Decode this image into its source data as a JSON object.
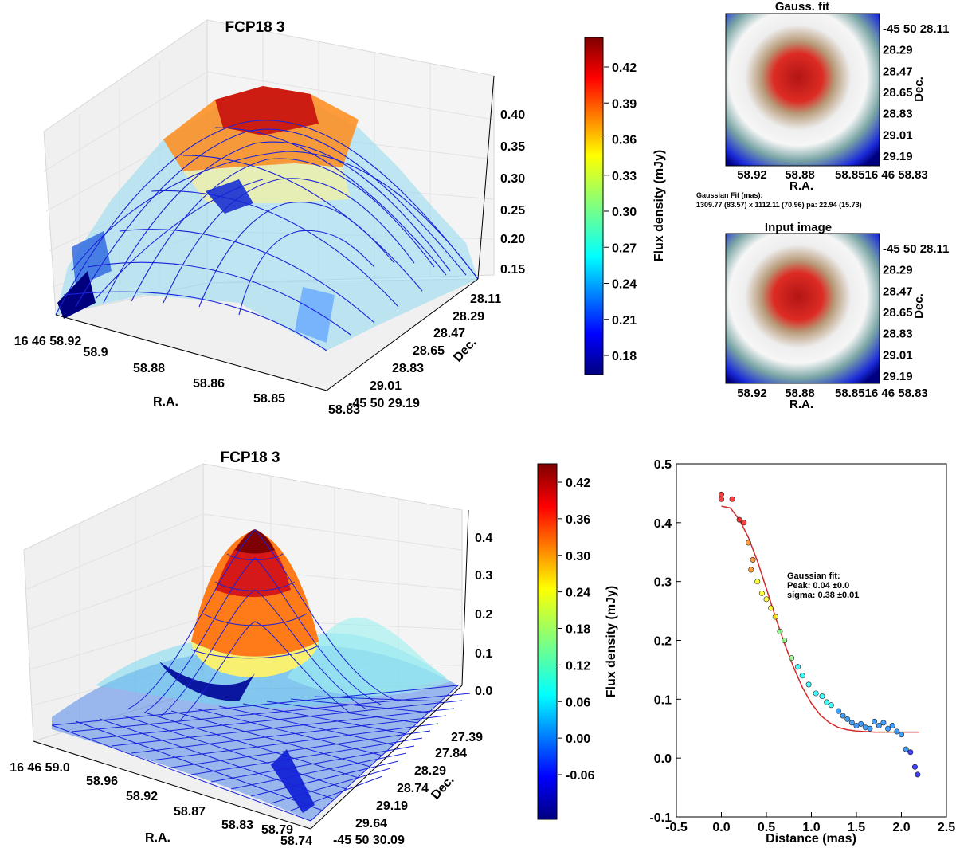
{
  "colors": {
    "jet": [
      "#00007f",
      "#0000ff",
      "#007fff",
      "#00ffff",
      "#7fff7f",
      "#ffff00",
      "#ff7f00",
      "#ff0000",
      "#7f0000"
    ],
    "fit_line": "#d62728",
    "wire": "#1a22d8"
  },
  "surface_top": {
    "title": "FCP18 3",
    "xlabel": "R.A.",
    "ylabel": "Dec.",
    "ra_ticks": [
      "16 46 58.92",
      "58.9",
      "58.88",
      "58.86",
      "58.85",
      "58.83"
    ],
    "dec_ticks": [
      "28.11",
      "28.29",
      "28.47",
      "28.65",
      "28.83",
      "29.01",
      "-45 50 29.19"
    ],
    "z_ticks": [
      "0.40",
      "0.35",
      "0.30",
      "0.25",
      "0.20",
      "0.15"
    ],
    "colorbar_label": "Flux density (mJy)",
    "colorbar_ticks": [
      "0.42",
      "0.39",
      "0.36",
      "0.33",
      "0.30",
      "0.27",
      "0.24",
      "0.21",
      "0.18"
    ]
  },
  "gauss_panel": {
    "title": "Gauss. fit",
    "xlabel": "R.A.",
    "ylabel": "Dec.",
    "x_ticks": [
      "58.92",
      "58.88",
      "58.8516 46 58.83"
    ],
    "y_ticks": [
      "-45 50 28.11",
      "28.29",
      "28.47",
      "28.65",
      "28.83",
      "29.01",
      "29.19"
    ],
    "fit_caption": "Gaussian Fit (mas):",
    "fit_values": "1309.77 (83.57) x 1112.11 (70.96) pa: 22.94 (15.73)"
  },
  "input_panel": {
    "title": "Input image",
    "xlabel": "R.A.",
    "ylabel": "Dec.",
    "x_ticks": [
      "58.92",
      "58.88",
      "58.8516 46 58.83"
    ],
    "y_ticks": [
      "-45 50 28.11",
      "28.29",
      "28.47",
      "28.65",
      "28.83",
      "29.01",
      "29.19"
    ]
  },
  "surface_bottom": {
    "title": "FCP18 3",
    "xlabel": "R.A.",
    "ylabel": "Dec.",
    "ra_ticks": [
      "16 46 59.0",
      "58.96",
      "58.92",
      "58.87",
      "58.83",
      "58.79",
      "58.74"
    ],
    "dec_ticks": [
      "27.39",
      "27.84",
      "28.29",
      "28.74",
      "29.19",
      "29.64",
      "-45 50 30.09"
    ],
    "z_ticks": [
      "0.4",
      "0.3",
      "0.2",
      "0.1",
      "0.0"
    ],
    "colorbar_label": "Flux density (mJy)",
    "colorbar_ticks": [
      "0.42",
      "0.36",
      "0.30",
      "0.24",
      "0.18",
      "0.12",
      "0.06",
      "0.00",
      "-0.06"
    ]
  },
  "chart_data": [
    {
      "type": "scatter",
      "title": "",
      "xlabel": "Distance (mas)",
      "ylabel": "",
      "xlim": [
        -0.5,
        2.5
      ],
      "ylim": [
        -0.1,
        0.5
      ],
      "x_ticks": [
        "-0.5",
        "0.0",
        "0.5",
        "1.0",
        "1.5",
        "2.0",
        "2.5"
      ],
      "y_ticks": [
        "-0.1",
        "0.0",
        "0.1",
        "0.2",
        "0.3",
        "0.4",
        "0.5"
      ],
      "annotation": [
        "Gaussian fit:",
        "Peak: 0.04 ±0.0",
        "sigma: 0.38 ±0.01"
      ],
      "points": [
        [
          0.0,
          0.448
        ],
        [
          0.0,
          0.44
        ],
        [
          0.12,
          0.44
        ],
        [
          0.2,
          0.405
        ],
        [
          0.25,
          0.4
        ],
        [
          0.3,
          0.366
        ],
        [
          0.35,
          0.337
        ],
        [
          0.33,
          0.32
        ],
        [
          0.4,
          0.3
        ],
        [
          0.45,
          0.28
        ],
        [
          0.5,
          0.27
        ],
        [
          0.55,
          0.255
        ],
        [
          0.6,
          0.24
        ],
        [
          0.65,
          0.215
        ],
        [
          0.7,
          0.2
        ],
        [
          0.78,
          0.17
        ],
        [
          0.85,
          0.155
        ],
        [
          0.9,
          0.14
        ],
        [
          0.97,
          0.125
        ],
        [
          1.05,
          0.11
        ],
        [
          1.12,
          0.105
        ],
        [
          1.17,
          0.095
        ],
        [
          1.22,
          0.09
        ],
        [
          1.3,
          0.08
        ],
        [
          1.35,
          0.072
        ],
        [
          1.4,
          0.066
        ],
        [
          1.45,
          0.06
        ],
        [
          1.5,
          0.055
        ],
        [
          1.55,
          0.058
        ],
        [
          1.6,
          0.052
        ],
        [
          1.65,
          0.05
        ],
        [
          1.7,
          0.062
        ],
        [
          1.75,
          0.055
        ],
        [
          1.8,
          0.06
        ],
        [
          1.85,
          0.05
        ],
        [
          1.9,
          0.055
        ],
        [
          1.95,
          0.045
        ],
        [
          2.0,
          0.04
        ],
        [
          2.05,
          0.015
        ],
        [
          2.1,
          0.01
        ],
        [
          2.15,
          -0.015
        ],
        [
          2.18,
          -0.028
        ]
      ],
      "series": [
        {
          "name": "Gaussian fit",
          "x": [
            0.0,
            0.1,
            0.2,
            0.3,
            0.4,
            0.5,
            0.6,
            0.7,
            0.8,
            0.9,
            1.0,
            1.1,
            1.2,
            1.3,
            1.4,
            1.5,
            1.6,
            1.7,
            1.8,
            1.9,
            2.0,
            2.1,
            2.2
          ],
          "y": [
            0.428,
            0.425,
            0.405,
            0.375,
            0.335,
            0.288,
            0.24,
            0.195,
            0.155,
            0.12,
            0.093,
            0.073,
            0.06,
            0.052,
            0.048,
            0.046,
            0.045,
            0.044,
            0.044,
            0.044,
            0.044,
            0.044,
            0.044
          ]
        }
      ]
    }
  ]
}
